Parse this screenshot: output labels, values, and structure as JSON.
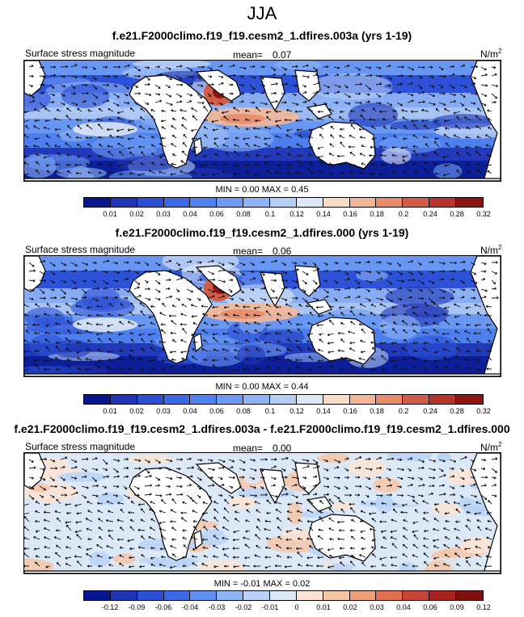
{
  "title": "JJA",
  "panels": [
    {
      "heading": "f.e21.F2000climo.f19_f19.cesm2_1.dfires.003a (yrs 1-19)",
      "variable": "Surface stress magnitude",
      "mean_label": "mean=",
      "mean": "0.07",
      "units": "N/m",
      "units_sup": "2",
      "min_label": "MIN =",
      "min": "0.00",
      "max_label": "MAX =",
      "max": "0.45",
      "ticks": [
        "0.01",
        "0.02",
        "0.03",
        "0.04",
        "0.06",
        "0.08",
        "0.1",
        "0.12",
        "0.14",
        "0.16",
        "0.18",
        "0.2",
        "0.24",
        "0.28",
        "0.32"
      ],
      "colors": [
        "#08178f",
        "#1f35b5",
        "#2b50d6",
        "#3c6ae6",
        "#4f82ef",
        "#6d9bf4",
        "#8fb4f5",
        "#b4cef6",
        "#dde8f7",
        "#f8dcc5",
        "#f3b797",
        "#e88b69",
        "#d35c44",
        "#b8332a",
        "#8c1512"
      ]
    },
    {
      "heading": "f.e21.F2000climo.f19_f19.cesm2_1.dfires.000 (yrs 1-19)",
      "variable": "Surface stress magnitude",
      "mean_label": "mean=",
      "mean": "0.06",
      "units": "N/m",
      "units_sup": "2",
      "min_label": "MIN =",
      "min": "0.00",
      "max_label": "MAX =",
      "max": "0.44",
      "ticks": [
        "0.01",
        "0.02",
        "0.03",
        "0.04",
        "0.06",
        "0.08",
        "0.1",
        "0.12",
        "0.14",
        "0.16",
        "0.18",
        "0.2",
        "0.24",
        "0.28",
        "0.32"
      ],
      "colors": [
        "#08178f",
        "#1f35b5",
        "#2b50d6",
        "#3c6ae6",
        "#4f82ef",
        "#6d9bf4",
        "#8fb4f5",
        "#b4cef6",
        "#dde8f7",
        "#f8dcc5",
        "#f3b797",
        "#e88b69",
        "#d35c44",
        "#b8332a",
        "#8c1512"
      ]
    },
    {
      "heading": "f.e21.F2000climo.f19_f19.cesm2_1.dfires.003a - f.e21.F2000climo.f19_f19.cesm2_1.dfires.000",
      "variable": "Surface stress magnitude",
      "mean_label": "mean=",
      "mean": "0.00",
      "units": "N/m",
      "units_sup": "2",
      "min_label": "MIN =",
      "min": "-0.01",
      "max_label": "MAX =",
      "max": "0.02",
      "ticks": [
        "-0.12",
        "-0.09",
        "-0.06",
        "-0.04",
        "-0.03",
        "-0.02",
        "-0.01",
        "0",
        "0.01",
        "0.02",
        "0.03",
        "0.04",
        "0.06",
        "0.09",
        "0.12"
      ],
      "colors": [
        "#08178f",
        "#1f35b5",
        "#2b50d6",
        "#3c6ae6",
        "#5f8ff0",
        "#8fb4f5",
        "#b8d2f7",
        "#dbe8f8",
        "#fbe4d4",
        "#f6c6a8",
        "#ee9f79",
        "#e0704f",
        "#c8443a",
        "#a8221f",
        "#800f0f"
      ]
    }
  ]
}
